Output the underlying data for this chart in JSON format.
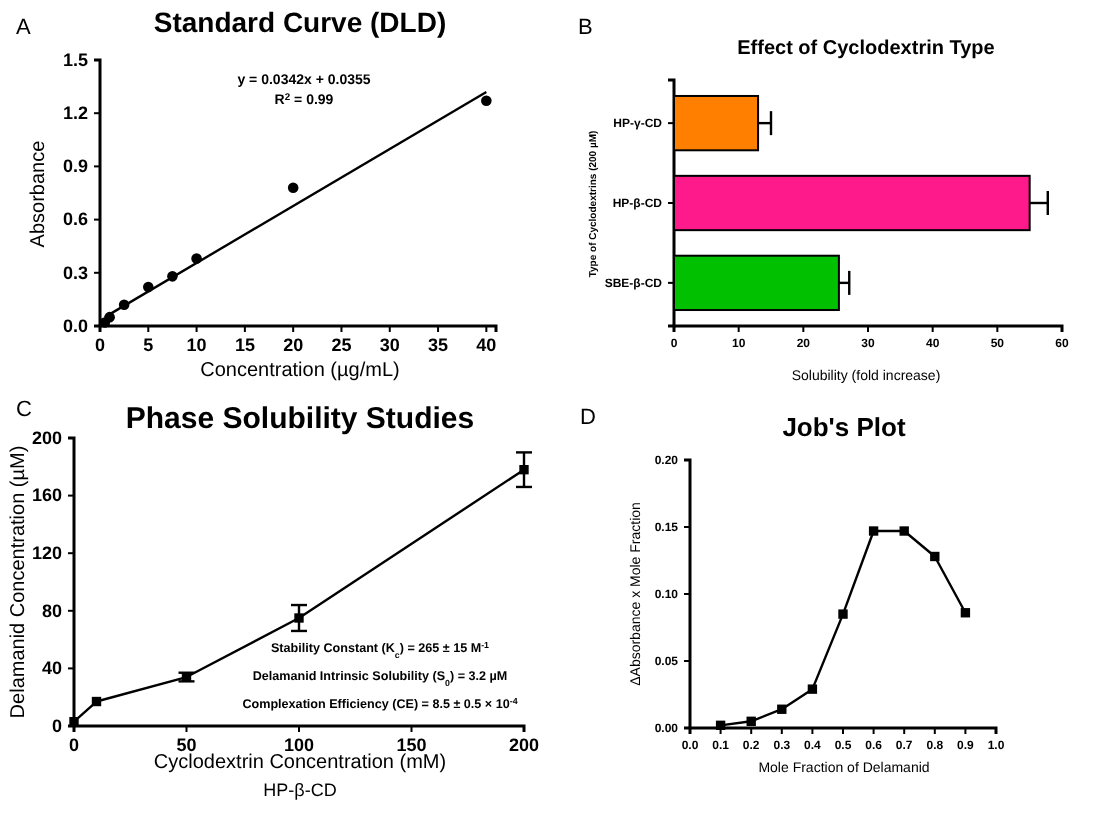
{
  "chart_data": [
    {
      "type": "scatter",
      "title": "Standard Curve (DLD)",
      "xlabel": "Concentration (µg/mL)",
      "ylabel": "Absorbance",
      "annotations": [
        "A",
        "y = 0.0342x + 0.0355",
        "R$^{2}$ = 0.99"
      ],
      "xlim": [
        0,
        41
      ],
      "xticks": [
        0,
        5,
        10,
        15,
        20,
        25,
        30,
        35,
        40
      ],
      "ylim": [
        0,
        1.5
      ],
      "yticks": [
        {
          "value": 0,
          "label": "0.0"
        },
        0.3,
        0.6,
        0.9,
        1.2,
        1.5
      ],
      "marker": "circle",
      "series": [
        {
          "type": "scatter",
          "color": "#000000",
          "x": [
            0.5,
            1,
            2.5,
            5,
            7.5,
            10,
            20,
            40
          ],
          "values": [
            0.02,
            0.05,
            0.12,
            0.22,
            0.28,
            0.38,
            0.78,
            1.27
          ]
        },
        {
          "type": "line",
          "color": "#000000",
          "marker": "none",
          "x": [
            0.5,
            40
          ],
          "values": [
            0.05,
            1.32
          ]
        }
      ]
    },
    {
      "type": "bar",
      "orientation": "horizontal",
      "title": "Effect of Cyclodextrin Type",
      "xlabel": "Solubility (fold increase)",
      "ylabel": "Type of Cyclodextrins (200 µM)",
      "annotations": [
        "B"
      ],
      "categories": [
        "HP-γ-CD",
        "HP-β-CD",
        "SBE-β-CD"
      ],
      "values": [
        13,
        55,
        25.5
      ],
      "errors": [
        2,
        2.8,
        1.6
      ],
      "colors": [
        "#ff8000",
        "#ff1a8c",
        "#00c000"
      ],
      "xlim": [
        0,
        60
      ],
      "xticks": [
        0,
        10,
        20,
        30,
        40,
        50,
        60
      ]
    },
    {
      "type": "line",
      "title": "Phase Solubility Studies",
      "xlabel": "Cyclodextrin Concentration (mM)",
      "ylabel": "Delamanid Concentration (µM)",
      "annotations": [
        "C",
        "HP-β-CD",
        "Stability Constant (K$_{c}$) = 265 ± 15 M$^{-1}$",
        "Delamanid Intrinsic Solubility (S$_{0}$) = 3.2 µM",
        "Complexation Efficiency (CE) = 8.5 ± 0.5 × 10$^{-4}$"
      ],
      "xlim": [
        0,
        200
      ],
      "xticks": [
        0,
        50,
        100,
        150,
        200
      ],
      "ylim": [
        0,
        200
      ],
      "yticks": [
        0,
        40,
        80,
        120,
        160,
        200
      ],
      "marker": "square",
      "series": [
        {
          "color": "#000000",
          "x": [
            0,
            10,
            50,
            100,
            200
          ],
          "values": [
            3,
            17,
            34,
            75,
            178
          ],
          "errors": [
            null,
            null,
            3,
            9,
            12
          ]
        }
      ]
    },
    {
      "type": "line",
      "title": "Job's Plot",
      "xlabel": "Mole Fraction of Delamanid",
      "ylabel": "ΔAbsorbance x Mole Fraction",
      "annotations": [
        "D"
      ],
      "xlim": [
        0,
        1
      ],
      "xticks": [
        {
          "value": 0,
          "label": "0.0"
        },
        0.1,
        0.2,
        0.3,
        0.4,
        0.5,
        0.6,
        0.7,
        0.8,
        0.9,
        {
          "value": 1,
          "label": "1.0"
        }
      ],
      "ylim": [
        0,
        0.2
      ],
      "yticks": [
        {
          "value": 0,
          "label": "0.00"
        },
        0.05,
        {
          "value": 0.1,
          "label": "0.10"
        },
        0.15,
        {
          "value": 0.2,
          "label": "0.20"
        }
      ],
      "marker": "square",
      "series": [
        {
          "color": "#000000",
          "x": [
            0.1,
            0.2,
            0.3,
            0.4,
            0.5,
            0.6,
            0.7,
            0.8,
            0.9
          ],
          "values": [
            0.002,
            0.005,
            0.014,
            0.029,
            0.085,
            0.147,
            0.147,
            0.128,
            0.086
          ]
        }
      ]
    }
  ]
}
